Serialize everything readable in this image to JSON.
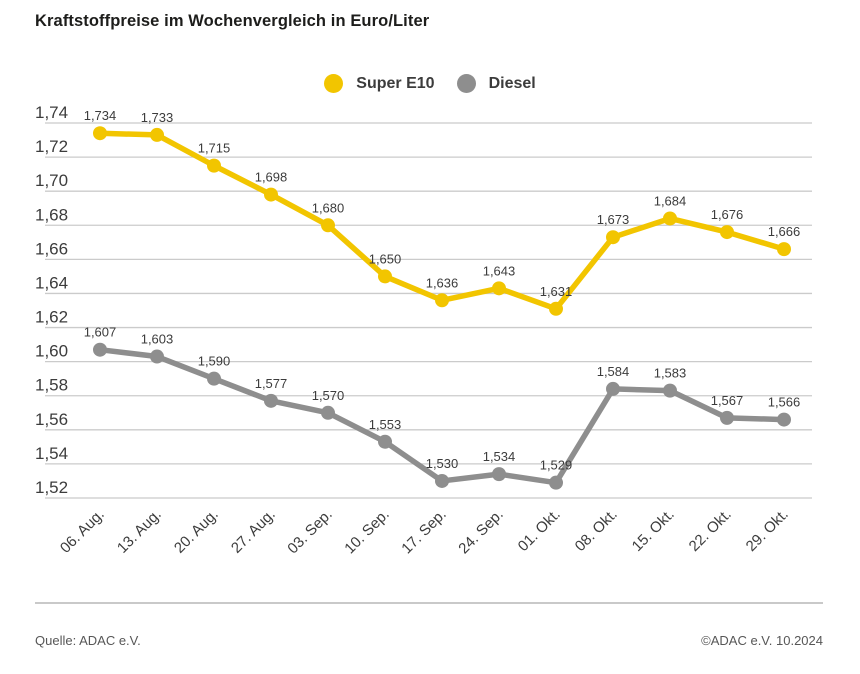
{
  "title": "Kraftstoffpreise im Wochenvergleich in Euro/Liter",
  "footer": {
    "source": "Quelle: ADAC e.V.",
    "copyright": "©ADAC e.V. 10.2024"
  },
  "colors": {
    "super_e10": "#F2C500",
    "diesel": "#8E8E8E",
    "gridline": "#CBCBCB",
    "label_text": "#3C3C3C",
    "title_text": "#1D1D1B"
  },
  "chart_data": {
    "type": "line",
    "title": "Kraftstoffpreise im Wochenvergleich in Euro/Liter",
    "xlabel": "",
    "ylabel": "Euro/Liter",
    "categories": [
      "06. Aug.",
      "13. Aug.",
      "20. Aug.",
      "27. Aug.",
      "03. Sep.",
      "10. Sep.",
      "17. Sep.",
      "24. Sep.",
      "01. Okt.",
      "08. Okt.",
      "15. Okt.",
      "22. Okt.",
      "29. Okt."
    ],
    "series": [
      {
        "name": "Super E10",
        "color": "#F2C500",
        "values": [
          1.734,
          1.733,
          1.715,
          1.698,
          1.68,
          1.65,
          1.636,
          1.643,
          1.631,
          1.673,
          1.684,
          1.676,
          1.666
        ]
      },
      {
        "name": "Diesel",
        "color": "#8E8E8E",
        "values": [
          1.607,
          1.603,
          1.59,
          1.577,
          1.57,
          1.553,
          1.53,
          1.534,
          1.529,
          1.584,
          1.583,
          1.567,
          1.566
        ]
      }
    ],
    "ylim": [
      1.52,
      1.74
    ],
    "ytick_step": 0.02,
    "ytick_decimals": 2,
    "value_label_decimals": 3,
    "decimal_separator": ",",
    "grid": true,
    "legend_position": "top-center",
    "x_label_rotation": -45
  }
}
